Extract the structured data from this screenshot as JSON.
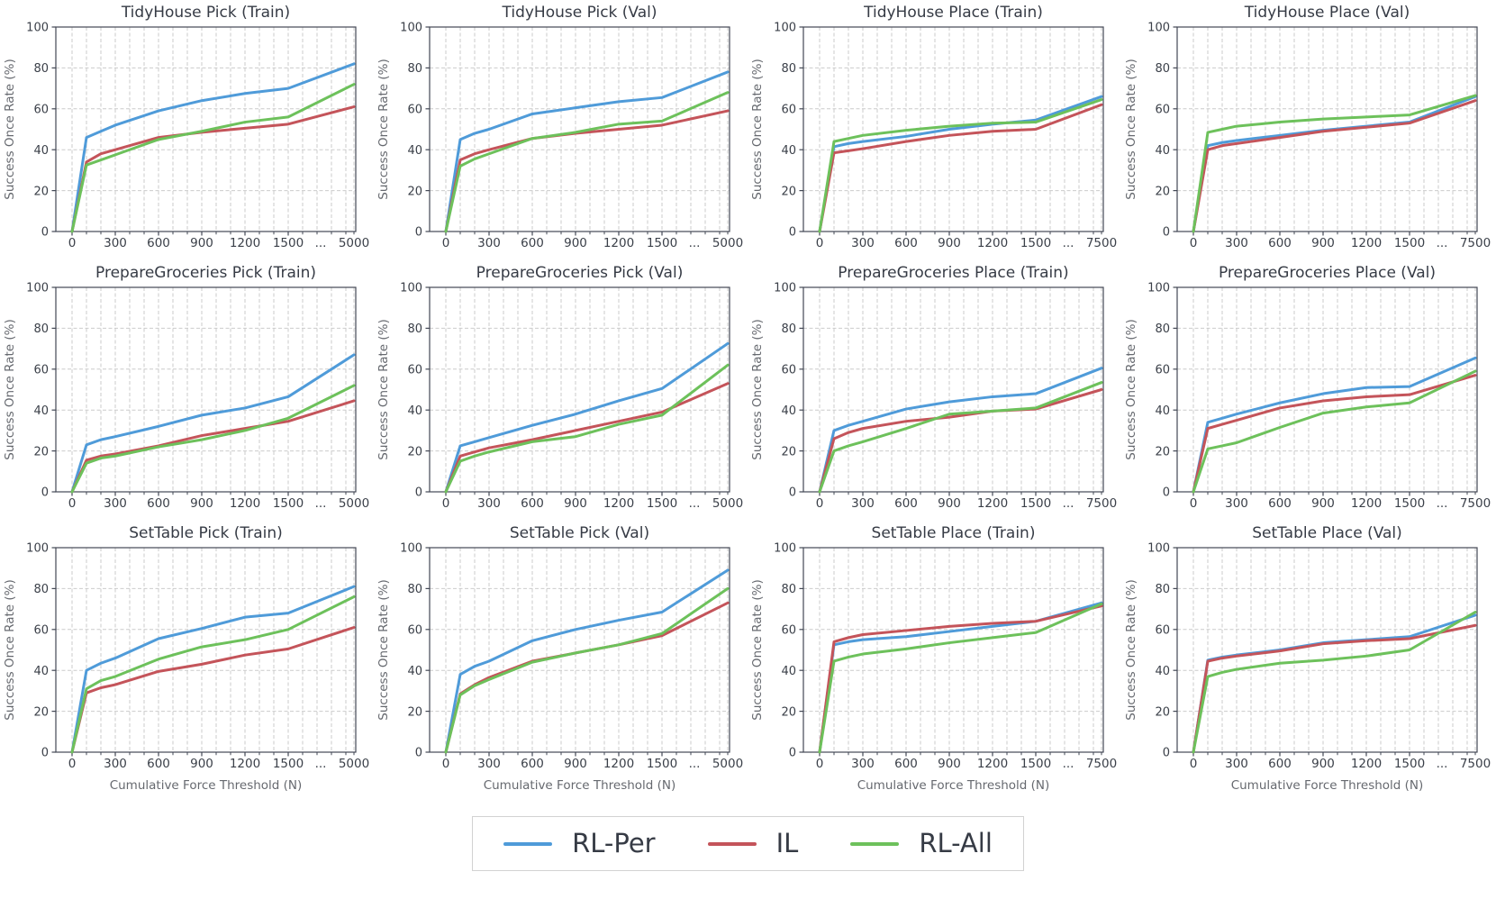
{
  "figure": {
    "x_label": "Cumulative Force Threshold (N)",
    "y_label": "Success Once Rate (%)",
    "legend": [
      {
        "name": "RL-Per",
        "color": "#4f9bd9"
      },
      {
        "name": "IL",
        "color": "#c4545a"
      },
      {
        "name": "RL-All",
        "color": "#6dc15b"
      }
    ]
  },
  "chart_data": {
    "type": "line",
    "grid": true,
    "legend_position": "bottom-center",
    "x_label": "Cumulative Force Threshold (N)",
    "y_label": "Success Once Rate (%)",
    "ylim": [
      0,
      100
    ],
    "y_ticks": [
      0,
      20,
      40,
      60,
      80,
      100
    ],
    "x_points": [
      0,
      100,
      200,
      300,
      600,
      900,
      1200,
      1500
    ],
    "x_major_tick_labels": [
      "0",
      "300",
      "600",
      "900",
      "1200",
      "1500"
    ],
    "axis_break_label": "...",
    "series_names": [
      "RL-Per",
      "IL",
      "RL-All"
    ],
    "series_colors": {
      "RL-Per": "#4f9bd9",
      "IL": "#c4545a",
      "RL-All": "#6dc15b"
    },
    "panels": [
      {
        "title": "TidyHouse Pick (Train)",
        "x_end": 5000,
        "series": [
          {
            "name": "RL-Per",
            "values": [
              0,
              46,
              49,
              52,
              59,
              64,
              67.5,
              70,
              82
            ]
          },
          {
            "name": "IL",
            "values": [
              0,
              34,
              38,
              40,
              46,
              48.5,
              50.5,
              52.5,
              61
            ]
          },
          {
            "name": "RL-All",
            "values": [
              0,
              32.5,
              35,
              37.5,
              45,
              49,
              53.5,
              56,
              72
            ]
          }
        ]
      },
      {
        "title": "TidyHouse Pick (Val)",
        "x_end": 5000,
        "series": [
          {
            "name": "RL-Per",
            "values": [
              0,
              45,
              48,
              50,
              57.5,
              60.5,
              63.5,
              65.5,
              78
            ]
          },
          {
            "name": "IL",
            "values": [
              0,
              35,
              38,
              40,
              45.5,
              48,
              50,
              52,
              59
            ]
          },
          {
            "name": "RL-All",
            "values": [
              0,
              32,
              35.5,
              38,
              45.5,
              48.5,
              52.5,
              54,
              68
            ]
          }
        ]
      },
      {
        "title": "TidyHouse Place (Train)",
        "x_end": 7500,
        "series": [
          {
            "name": "RL-Per",
            "values": [
              0,
              41.5,
              43,
              44,
              46.5,
              50,
              52.5,
              54.5,
              66
            ]
          },
          {
            "name": "IL",
            "values": [
              0,
              38.5,
              39.5,
              40.5,
              44,
              47,
              49,
              50,
              62
            ]
          },
          {
            "name": "RL-All",
            "values": [
              0,
              44,
              45.5,
              47,
              49.5,
              51.5,
              53,
              53.5,
              64.5
            ]
          }
        ]
      },
      {
        "title": "TidyHouse Place (Val)",
        "x_end": 7500,
        "series": [
          {
            "name": "RL-Per",
            "values": [
              0,
              42,
              43.5,
              44.5,
              47,
              49.5,
              51.5,
              53.5,
              66
            ]
          },
          {
            "name": "IL",
            "values": [
              0,
              40,
              42,
              43,
              46,
              49,
              51,
              53,
              64
            ]
          },
          {
            "name": "RL-All",
            "values": [
              0,
              48.5,
              50,
              51.5,
              53.5,
              55,
              56,
              57,
              66.5
            ]
          }
        ]
      },
      {
        "title": "PrepareGroceries Pick (Train)",
        "x_end": 5000,
        "series": [
          {
            "name": "RL-Per",
            "values": [
              0,
              23,
              25.5,
              27,
              32,
              37.5,
              41,
              46.5,
              67
            ]
          },
          {
            "name": "IL",
            "values": [
              0,
              15.5,
              17.5,
              18.5,
              22.5,
              27.5,
              31,
              34.5,
              44.5
            ]
          },
          {
            "name": "RL-All",
            "values": [
              0,
              14,
              16.5,
              17.5,
              22,
              25.5,
              30,
              36,
              52
            ]
          }
        ]
      },
      {
        "title": "PrepareGroceries Pick (Val)",
        "x_end": 5000,
        "series": [
          {
            "name": "RL-Per",
            "values": [
              0,
              22.5,
              24.5,
              26.5,
              32.5,
              38,
              44.5,
              50.5,
              72.5
            ]
          },
          {
            "name": "IL",
            "values": [
              0,
              17.5,
              19.5,
              21.5,
              25.5,
              30,
              34.5,
              39,
              53
            ]
          },
          {
            "name": "RL-All",
            "values": [
              0,
              15,
              17.5,
              19.5,
              24.5,
              27,
              33,
              37.5,
              62
            ]
          }
        ]
      },
      {
        "title": "PrepareGroceries Place (Train)",
        "x_end": 7500,
        "series": [
          {
            "name": "RL-Per",
            "values": [
              0,
              30,
              32.5,
              34.5,
              40.5,
              44,
              46.5,
              48,
              60.5
            ]
          },
          {
            "name": "IL",
            "values": [
              0,
              26,
              29,
              31,
              34.5,
              36.5,
              39.5,
              40.5,
              50
            ]
          },
          {
            "name": "RL-All",
            "values": [
              0,
              20,
              22.5,
              24.5,
              31,
              38,
              39.5,
              41,
              53.5
            ]
          }
        ]
      },
      {
        "title": "PrepareGroceries Place (Val)",
        "x_end": 7500,
        "series": [
          {
            "name": "RL-Per",
            "values": [
              0,
              34,
              36,
              38,
              43.5,
              48,
              51,
              51.5,
              65.5
            ]
          },
          {
            "name": "IL",
            "values": [
              0,
              31,
              33,
              35,
              41,
              44.5,
              46.5,
              47.5,
              57
            ]
          },
          {
            "name": "RL-All",
            "values": [
              0,
              21,
              22.5,
              24,
              31.5,
              38.5,
              41.5,
              43.5,
              59
            ]
          }
        ]
      },
      {
        "title": "SetTable Pick (Train)",
        "x_end": 5000,
        "series": [
          {
            "name": "RL-Per",
            "values": [
              0,
              40,
              43.5,
              46,
              55.5,
              60.5,
              66,
              68,
              81
            ]
          },
          {
            "name": "IL",
            "values": [
              0,
              29,
              31.5,
              33,
              39.5,
              43,
              47.5,
              50.5,
              61
            ]
          },
          {
            "name": "RL-All",
            "values": [
              0,
              31,
              35,
              37,
              45.5,
              51.5,
              55,
              60,
              76
            ]
          }
        ]
      },
      {
        "title": "SetTable Pick (Val)",
        "x_end": 5000,
        "series": [
          {
            "name": "RL-Per",
            "values": [
              0,
              38,
              42,
              44.5,
              54.5,
              60,
              64.5,
              68.5,
              89
            ]
          },
          {
            "name": "IL",
            "values": [
              0,
              28.5,
              33,
              36.5,
              44.5,
              48.5,
              52.5,
              57,
              73
            ]
          },
          {
            "name": "RL-All",
            "values": [
              0,
              28,
              32.5,
              35.5,
              44,
              48.5,
              52.5,
              58,
              80
            ]
          }
        ]
      },
      {
        "title": "SetTable Place (Train)",
        "x_end": 7500,
        "series": [
          {
            "name": "RL-Per",
            "values": [
              0,
              52.5,
              54,
              55,
              56.5,
              59,
              61.5,
              64,
              73
            ]
          },
          {
            "name": "IL",
            "values": [
              0,
              54,
              56,
              57.5,
              59.5,
              61.5,
              63,
              64,
              71.5
            ]
          },
          {
            "name": "RL-All",
            "values": [
              0,
              44.5,
              46.5,
              48,
              50.5,
              53.5,
              56,
              58.5,
              72.5
            ]
          }
        ]
      },
      {
        "title": "SetTable Place (Val)",
        "x_end": 7500,
        "series": [
          {
            "name": "RL-Per",
            "values": [
              0,
              45,
              46.5,
              47.5,
              50,
              53.5,
              55,
              56.5,
              67
            ]
          },
          {
            "name": "IL",
            "values": [
              0,
              44.5,
              46,
              47,
              49.5,
              53,
              54.5,
              55.5,
              62
            ]
          },
          {
            "name": "RL-All",
            "values": [
              0,
              37,
              39,
              40.5,
              43.5,
              45,
              47,
              50,
              68.5
            ]
          }
        ]
      }
    ]
  }
}
